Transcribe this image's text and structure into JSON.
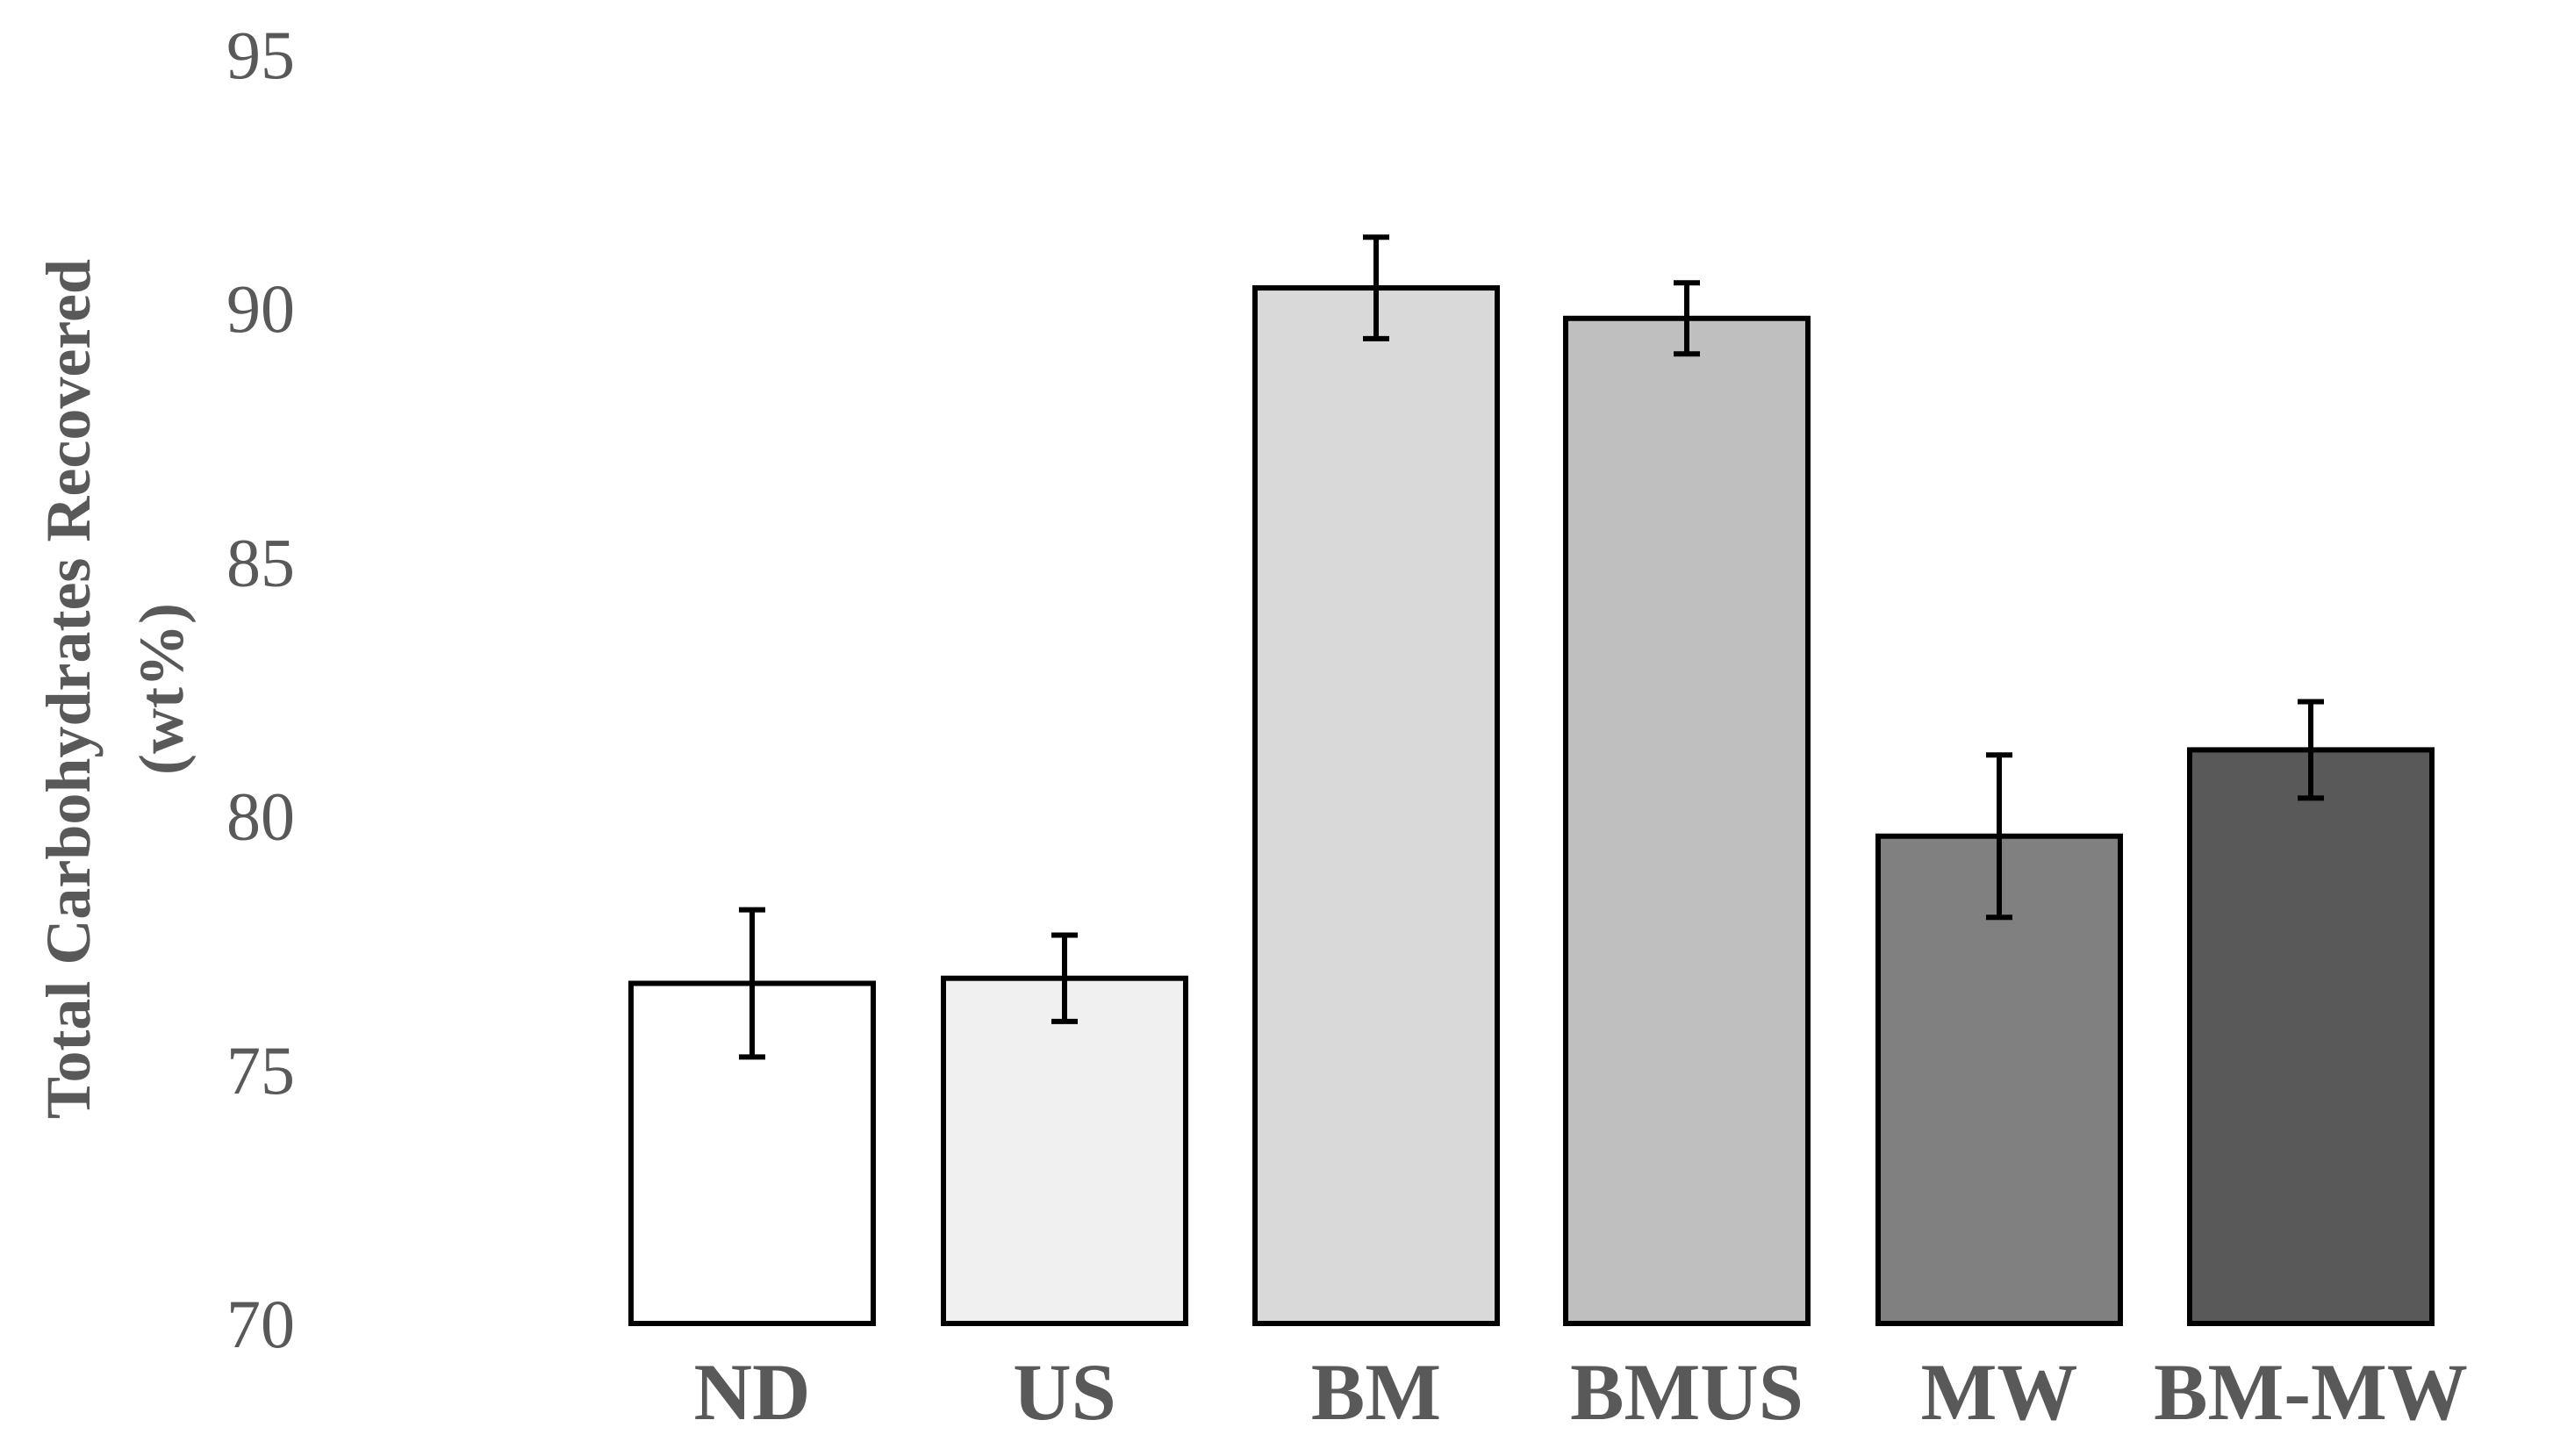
{
  "chart_data": {
    "type": "bar",
    "ylabel_line1": "Total Carbohydrates Recovered",
    "ylabel_line2": "(wt%)",
    "ylim": [
      70,
      95
    ],
    "yticks": [
      70,
      75,
      80,
      85,
      90,
      95
    ],
    "grid": false,
    "categories": [
      "ND",
      "US",
      "BM",
      "BMUS",
      "MW",
      "BM-MW"
    ],
    "values": [
      76.7,
      76.8,
      90.4,
      89.8,
      79.6,
      81.3
    ],
    "errors": [
      1.45,
      0.85,
      1.0,
      0.7,
      1.6,
      0.95
    ],
    "bar_colors": [
      "#ffffff",
      "#f0f0f0",
      "#d9d9d9",
      "#bfbfbf",
      "#808080",
      "#595959"
    ]
  }
}
